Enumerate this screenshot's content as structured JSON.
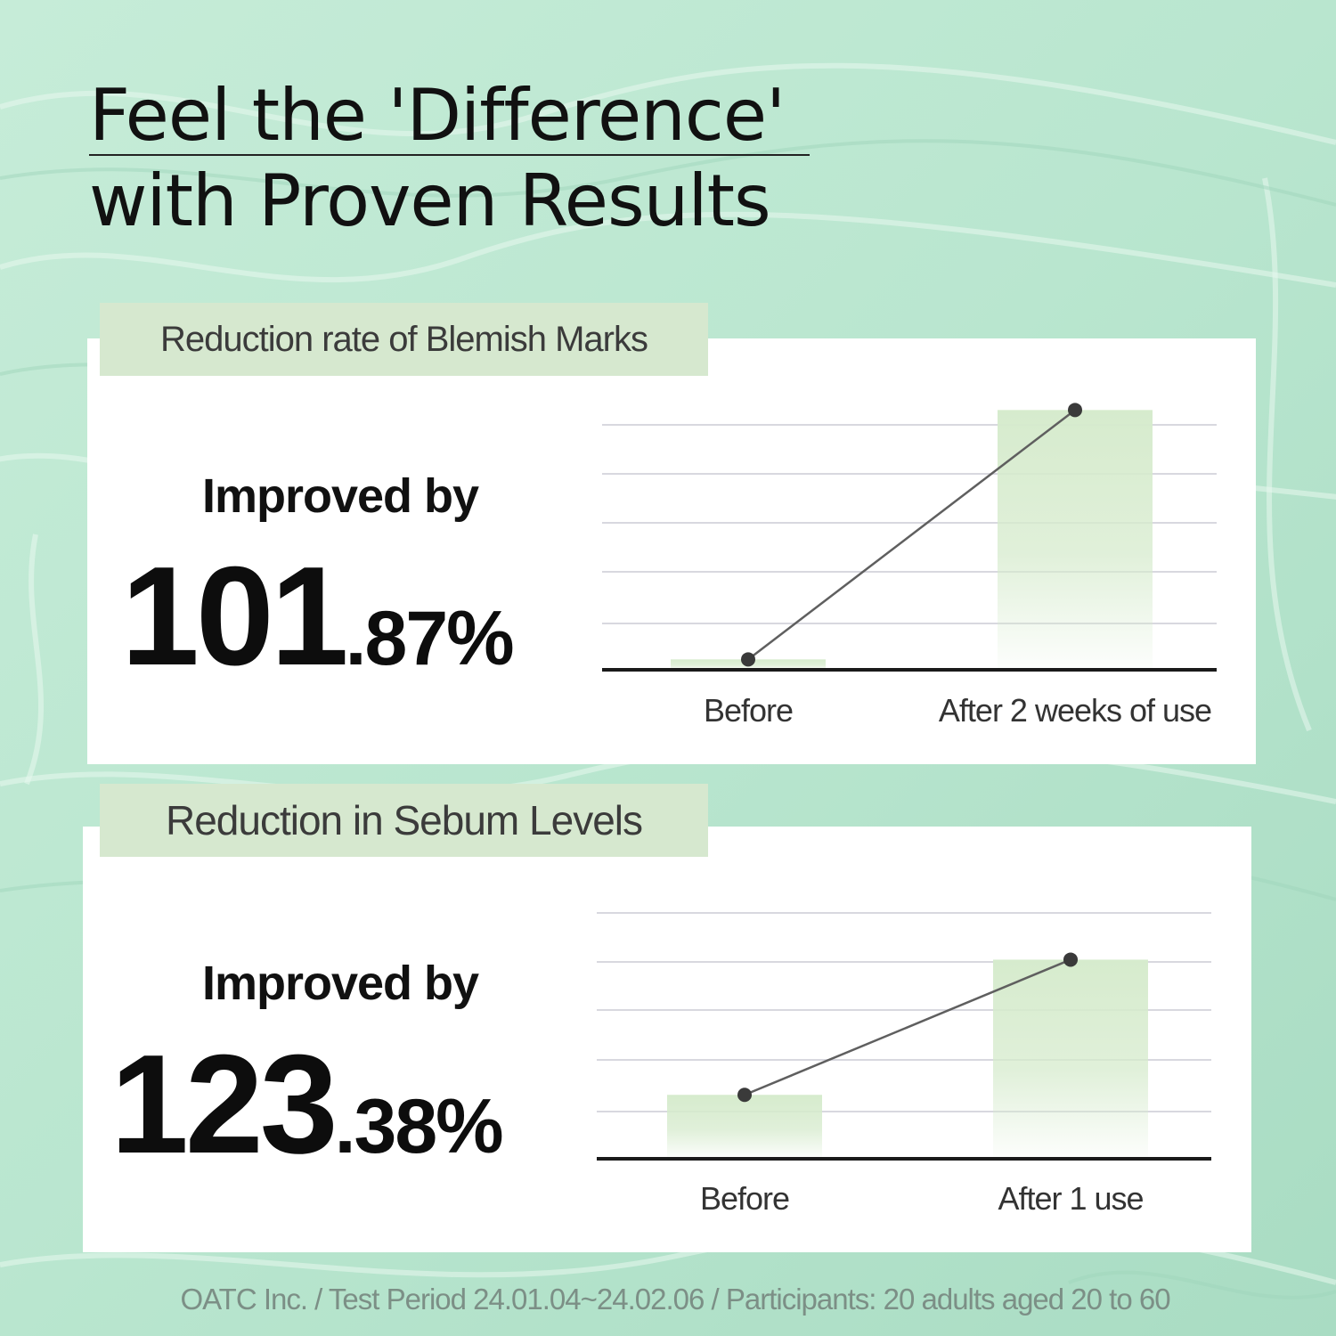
{
  "title_line1": "Feel the 'Difference'",
  "title_line2": "with Proven Results",
  "panels": [
    {
      "tag": "Reduction rate of Blemish Marks",
      "improved_label": "Improved by",
      "percent_int": "101",
      "percent_dec": ".87%"
    },
    {
      "tag": "Reduction in Sebum Levels",
      "improved_label": "Improved by",
      "percent_int": "123",
      "percent_dec": ".38%"
    }
  ],
  "footnote": "OATC Inc. / Test Period 24.01.04~24.02.06 / Participants: 20 adults aged 20 to 60",
  "colors": {
    "bar_fill": "#d6ebcd",
    "line": "#5f5f5f",
    "marker": "#3a3a3a",
    "gridline": "#d8d8df",
    "baseline": "#1a1a1a",
    "tag_bg": "#d6e8cf",
    "background": "#bfe8d3"
  },
  "chart_data": [
    {
      "type": "bar",
      "categories": [
        "Before",
        "After 2 weeks of use"
      ],
      "values": [
        4,
        100
      ],
      "ylim": [
        0,
        108
      ],
      "grid": true,
      "overlay_line": true,
      "xlabel": "",
      "ylabel": ""
    },
    {
      "type": "bar",
      "categories": [
        "Before",
        "After 1 use"
      ],
      "values": [
        26,
        81
      ],
      "ylim": [
        0,
        100
      ],
      "grid": true,
      "overlay_line": true,
      "xlabel": "",
      "ylabel": ""
    }
  ]
}
